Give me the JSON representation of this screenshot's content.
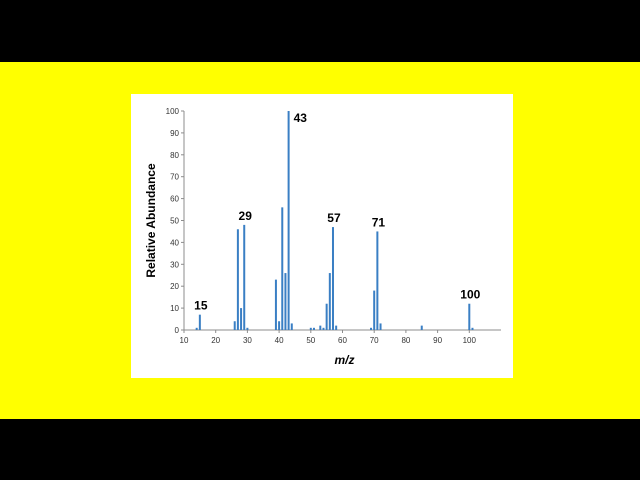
{
  "chart_data": {
    "type": "bar",
    "title": "",
    "xlabel": "m/z",
    "ylabel": "Relative Abundance",
    "xlim": [
      10,
      110
    ],
    "ylim": [
      0,
      100
    ],
    "x_ticks": [
      10,
      20,
      30,
      40,
      50,
      60,
      70,
      80,
      90,
      100
    ],
    "y_ticks": [
      0,
      10,
      20,
      30,
      40,
      50,
      60,
      70,
      80,
      90,
      100
    ],
    "grid": false,
    "bar_color": "#3a7fc4",
    "series": [
      {
        "x": [
          14,
          15,
          26,
          27,
          28,
          29,
          30,
          39,
          40,
          41,
          42,
          43,
          44,
          50,
          51,
          53,
          54,
          55,
          56,
          57,
          58,
          69,
          70,
          71,
          72,
          85,
          100,
          101
        ],
        "values": [
          1,
          7,
          4,
          46,
          10,
          48,
          1,
          23,
          4,
          56,
          26,
          100,
          3,
          1,
          1,
          2,
          1,
          12,
          26,
          47,
          2,
          1,
          18,
          45,
          3,
          2,
          12,
          1
        ]
      }
    ],
    "annotations": [
      {
        "text": "15",
        "x": 15,
        "y": 7
      },
      {
        "text": "29",
        "x": 29,
        "y": 48
      },
      {
        "text": "43",
        "x": 43,
        "y": 100
      },
      {
        "text": "57",
        "x": 57,
        "y": 47
      },
      {
        "text": "71",
        "x": 71,
        "y": 45
      },
      {
        "text": "100",
        "x": 100,
        "y": 12
      }
    ]
  }
}
